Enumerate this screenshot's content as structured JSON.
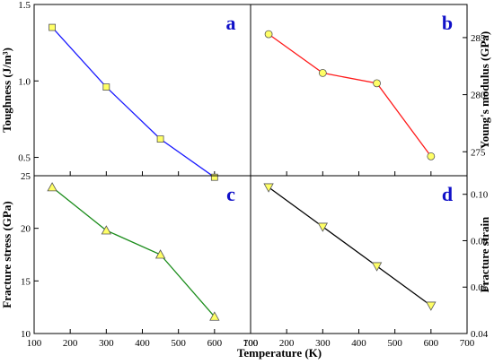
{
  "figure": {
    "x_axis_title": "Temperature (K)",
    "x_ticks": [
      "100",
      "200",
      "300",
      "400",
      "500",
      "600",
      "700"
    ]
  },
  "chart_data": [
    {
      "panel": "a",
      "type": "line",
      "ylabel": "Toughness (J/m³)",
      "x": [
        150,
        300,
        450,
        600
      ],
      "y": [
        1.35,
        0.96,
        0.62,
        0.37
      ],
      "xlim": [
        100,
        700
      ],
      "ylim": [
        0.38,
        1.5
      ],
      "yticks": [
        0.5,
        1.0,
        1.5
      ],
      "ytick_labels": [
        "0.5",
        "1.0",
        "1.5"
      ],
      "y_axis_side": "left",
      "marker": "square",
      "line_color": "#1a1aff",
      "marker_color": "#ffff66"
    },
    {
      "panel": "b",
      "type": "line",
      "ylabel": "Young's modulus (GPa)",
      "x": [
        150,
        300,
        450,
        600
      ],
      "y": [
        285.3,
        281.9,
        281.0,
        274.6
      ],
      "xlim": [
        100,
        700
      ],
      "ylim": [
        272.9,
        287.9
      ],
      "yticks": [
        275,
        280,
        285
      ],
      "ytick_labels": [
        "275",
        "280",
        "285"
      ],
      "y_axis_side": "right",
      "marker": "circle",
      "line_color": "#ff1a1a",
      "marker_color": "#ffff66"
    },
    {
      "panel": "c",
      "type": "line",
      "ylabel": "Fracture stress (GPa)",
      "x": [
        150,
        300,
        450,
        600
      ],
      "y": [
        23.9,
        19.8,
        17.5,
        11.6
      ],
      "xlim": [
        100,
        700
      ],
      "ylim": [
        10,
        25
      ],
      "yticks": [
        10,
        15,
        20,
        25
      ],
      "ytick_labels": [
        "10",
        "15",
        "20",
        "25"
      ],
      "y_axis_side": "left",
      "marker": "triangle-up",
      "line_color": "#1a8c1a",
      "marker_color": "#ffff66"
    },
    {
      "panel": "d",
      "type": "line",
      "ylabel": "Fracture strain",
      "x": [
        150,
        300,
        450,
        600
      ],
      "y": [
        0.103,
        0.086,
        0.069,
        0.052
      ],
      "xlim": [
        100,
        700
      ],
      "ylim": [
        0.04,
        0.108
      ],
      "yticks": [
        0.04,
        0.06,
        0.08,
        0.1
      ],
      "ytick_labels": [
        "0.04",
        "0.06",
        "0.08",
        "0.10"
      ],
      "y_axis_side": "right",
      "marker": "triangle-down",
      "line_color": "#000000",
      "marker_color": "#ffff66"
    }
  ]
}
